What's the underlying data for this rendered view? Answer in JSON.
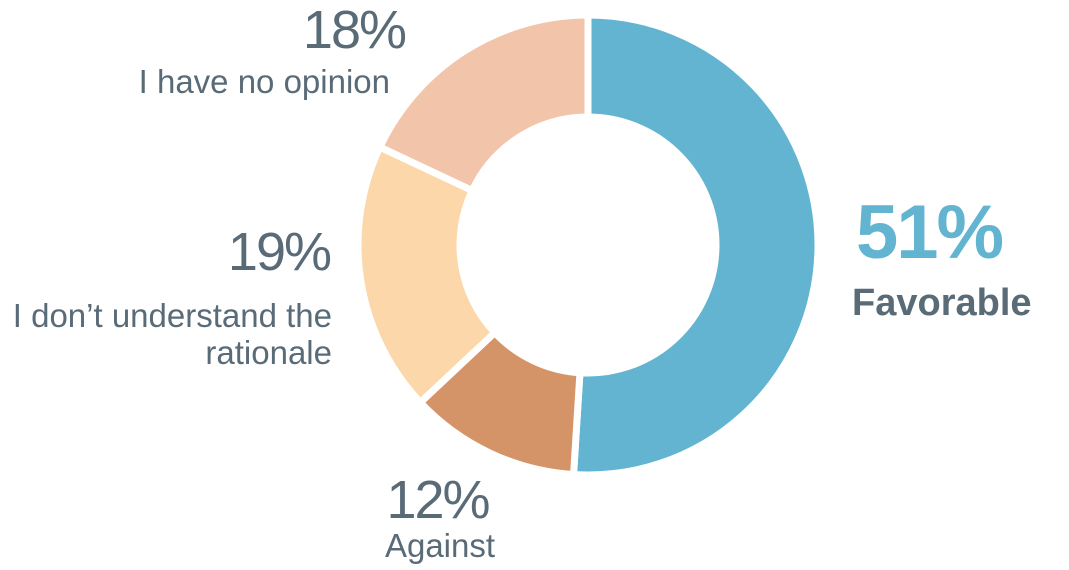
{
  "chart_data": {
    "type": "donut",
    "categories": [
      "Favorable",
      "Against",
      "I don’t understand the rationale",
      "I have no opinion"
    ],
    "values": [
      51,
      12,
      19,
      18
    ],
    "value_labels": [
      "51%",
      "12%",
      "19%",
      "18%"
    ],
    "colors": [
      "#62b4d0",
      "#d59467",
      "#fbd7a9",
      "#f2c4a9"
    ]
  }
}
